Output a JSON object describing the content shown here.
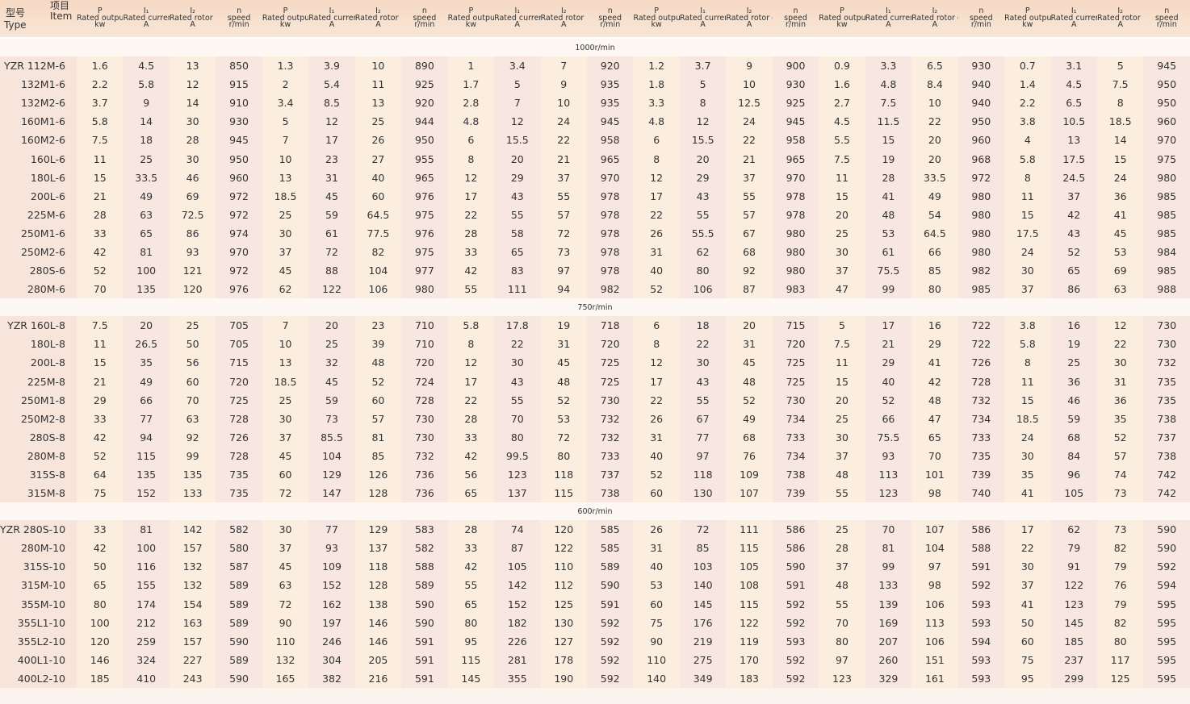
{
  "header": {
    "type_cn": "型号",
    "item_cn": "项目",
    "type_en": "Type",
    "item_en": "Item",
    "columns": [
      {
        "symbol": "P",
        "name": "Rated output",
        "unit": "kw"
      },
      {
        "symbol": "I₁",
        "name": "Rated current",
        "unit": "A"
      },
      {
        "symbol": "I₂",
        "name": "Rated rotor current",
        "unit": "A"
      },
      {
        "symbol": "n",
        "name": "speed",
        "unit": "r/min"
      }
    ]
  },
  "sections": [
    {
      "title": "1000r/min",
      "rows": [
        {
          "type": "YZR 112M-6",
          "values": [
            1.6,
            4.5,
            13,
            850,
            1.3,
            3.9,
            10,
            890,
            1,
            3.4,
            7,
            920,
            1.2,
            3.7,
            9,
            900,
            0.9,
            3.3,
            6.5,
            930,
            0.7,
            3.1,
            5,
            945
          ]
        },
        {
          "type": "132M1-6",
          "values": [
            2.2,
            5.8,
            12,
            915,
            2,
            5.4,
            11,
            925,
            1.7,
            5,
            9,
            935,
            1.8,
            5,
            10,
            930,
            1.6,
            4.8,
            8.4,
            940,
            1.4,
            4.5,
            7.5,
            950
          ]
        },
        {
          "type": "132M2-6",
          "values": [
            3.7,
            9,
            14,
            910,
            3.4,
            8.5,
            13,
            920,
            2.8,
            7,
            10,
            935,
            3.3,
            8,
            12.5,
            925,
            2.7,
            7.5,
            10,
            940,
            2.2,
            6.5,
            8,
            950
          ]
        },
        {
          "type": "160M1-6",
          "values": [
            5.8,
            14,
            30,
            930,
            5,
            12,
            25,
            944,
            4.8,
            12,
            24,
            945,
            4.8,
            12,
            24,
            945,
            4.5,
            11.5,
            22,
            950,
            3.8,
            10.5,
            18.5,
            960
          ]
        },
        {
          "type": "160M2-6",
          "values": [
            7.5,
            18,
            28,
            945,
            7,
            17,
            26,
            950,
            6,
            15.5,
            22,
            958,
            6,
            15.5,
            22,
            958,
            5.5,
            15,
            20,
            960,
            4,
            13,
            14,
            970
          ]
        },
        {
          "type": "160L-6",
          "values": [
            11,
            25,
            30,
            950,
            10,
            23,
            27,
            955,
            8,
            20,
            21,
            965,
            8,
            20,
            21,
            965,
            7.5,
            19,
            20,
            968,
            5.8,
            17.5,
            15,
            975
          ]
        },
        {
          "type": "180L-6",
          "values": [
            15,
            33.5,
            46,
            960,
            13,
            31,
            40,
            965,
            12,
            29,
            37,
            970,
            12,
            29,
            37,
            970,
            11,
            28,
            33.5,
            972,
            8,
            24.5,
            24,
            980
          ]
        },
        {
          "type": "200L-6",
          "values": [
            21,
            49,
            69,
            972,
            18.5,
            45,
            60,
            976,
            17,
            43,
            55,
            978,
            17,
            43,
            55,
            978,
            15,
            41,
            49,
            980,
            11,
            37,
            36,
            985
          ]
        },
        {
          "type": "225M-6",
          "values": [
            28,
            63,
            72.5,
            972,
            25,
            59,
            64.5,
            975,
            22,
            55,
            57,
            978,
            22,
            55,
            57,
            978,
            20,
            48,
            54,
            980,
            15,
            42,
            41,
            985
          ]
        },
        {
          "type": "250M1-6",
          "values": [
            33,
            65,
            86,
            974,
            30,
            61,
            77.5,
            976,
            28,
            58,
            72,
            978,
            26,
            55.5,
            67,
            980,
            25,
            53,
            64.5,
            980,
            17.5,
            43,
            45,
            985
          ]
        },
        {
          "type": "250M2-6",
          "values": [
            42,
            81,
            93,
            970,
            37,
            72,
            82,
            975,
            33,
            65,
            73,
            978,
            31,
            62,
            68,
            980,
            30,
            61,
            66,
            980,
            24,
            52,
            53,
            984
          ]
        },
        {
          "type": "280S-6",
          "values": [
            52,
            100,
            121,
            972,
            45,
            88,
            104,
            977,
            42,
            83,
            97,
            978,
            40,
            80,
            92,
            980,
            37,
            75.5,
            85,
            982,
            30,
            65,
            69,
            985
          ]
        },
        {
          "type": "280M-6",
          "values": [
            70,
            135,
            120,
            976,
            62,
            122,
            106,
            980,
            55,
            111,
            94,
            982,
            52,
            106,
            87,
            983,
            47,
            99,
            80,
            985,
            37,
            86,
            63,
            988
          ]
        }
      ]
    },
    {
      "title": "750r/min",
      "rows": [
        {
          "type": "YZR 160L-8",
          "values": [
            7.5,
            20,
            25,
            705,
            7,
            20,
            23,
            710,
            5.8,
            17.8,
            19,
            718,
            6,
            18,
            20,
            715,
            5,
            17,
            16,
            722,
            3.8,
            16,
            12,
            730
          ]
        },
        {
          "type": "180L-8",
          "values": [
            11,
            26.5,
            50,
            705,
            10,
            25,
            39,
            710,
            8,
            22,
            31,
            720,
            8,
            22,
            31,
            720,
            7.5,
            21,
            29,
            722,
            5.8,
            19,
            22,
            730
          ]
        },
        {
          "type": "200L-8",
          "values": [
            15,
            35,
            56,
            715,
            13,
            32,
            48,
            720,
            12,
            30,
            45,
            725,
            12,
            30,
            45,
            725,
            11,
            29,
            41,
            726,
            8,
            25,
            30,
            732
          ]
        },
        {
          "type": "225M-8",
          "values": [
            21,
            49,
            60,
            720,
            18.5,
            45,
            52,
            724,
            17,
            43,
            48,
            725,
            17,
            43,
            48,
            725,
            15,
            40,
            42,
            728,
            11,
            36,
            31,
            735
          ]
        },
        {
          "type": "250M1-8",
          "values": [
            29,
            66,
            70,
            725,
            25,
            59,
            60,
            728,
            22,
            55,
            52,
            730,
            22,
            55,
            52,
            730,
            20,
            52,
            48,
            732,
            15,
            46,
            36,
            735
          ]
        },
        {
          "type": "250M2-8",
          "values": [
            33,
            77,
            63,
            728,
            30,
            73,
            57,
            730,
            28,
            70,
            53,
            732,
            26,
            67,
            49,
            734,
            25,
            66,
            47,
            734,
            18.5,
            59,
            35,
            738
          ]
        },
        {
          "type": "280S-8",
          "values": [
            42,
            94,
            92,
            726,
            37,
            85.5,
            81,
            730,
            33,
            80,
            72,
            732,
            31,
            77,
            68,
            733,
            30,
            75.5,
            65,
            733,
            24,
            68,
            52,
            737
          ]
        },
        {
          "type": "280M-8",
          "values": [
            52,
            115,
            99,
            728,
            45,
            104,
            85,
            732,
            42,
            99.5,
            80,
            733,
            40,
            97,
            76,
            734,
            37,
            93,
            70,
            735,
            30,
            84,
            57,
            738
          ]
        },
        {
          "type": "315S-8",
          "values": [
            64,
            135,
            135,
            735,
            60,
            129,
            126,
            736,
            56,
            123,
            118,
            737,
            52,
            118,
            109,
            738,
            48,
            113,
            101,
            739,
            35,
            96,
            74,
            742
          ]
        },
        {
          "type": "315M-8",
          "values": [
            75,
            152,
            133,
            735,
            72,
            147,
            128,
            736,
            65,
            137,
            115,
            738,
            60,
            130,
            107,
            739,
            55,
            123,
            98,
            740,
            41,
            105,
            73,
            742
          ]
        }
      ]
    },
    {
      "title": "600r/min",
      "rows": [
        {
          "type": "YZR 280S-10",
          "values": [
            33,
            81,
            142,
            582,
            30,
            77,
            129,
            583,
            28,
            74,
            120,
            585,
            26,
            72,
            111,
            586,
            25,
            70,
            107,
            586,
            17,
            62,
            73,
            590
          ]
        },
        {
          "type": "280M-10",
          "values": [
            42,
            100,
            157,
            580,
            37,
            93,
            137,
            582,
            33,
            87,
            122,
            585,
            31,
            85,
            115,
            586,
            28,
            81,
            104,
            588,
            22,
            79,
            82,
            590
          ]
        },
        {
          "type": "315S-10",
          "values": [
            50,
            116,
            132,
            587,
            45,
            109,
            118,
            588,
            42,
            105,
            110,
            589,
            40,
            103,
            105,
            590,
            37,
            99,
            97,
            591,
            30,
            91,
            79,
            592
          ]
        },
        {
          "type": "315M-10",
          "values": [
            65,
            155,
            132,
            589,
            63,
            152,
            128,
            589,
            55,
            142,
            112,
            590,
            53,
            140,
            108,
            591,
            48,
            133,
            98,
            592,
            37,
            122,
            76,
            594
          ]
        },
        {
          "type": "355M-10",
          "values": [
            80,
            174,
            154,
            589,
            72,
            162,
            138,
            590,
            65,
            152,
            125,
            591,
            60,
            145,
            115,
            592,
            55,
            139,
            106,
            593,
            41,
            123,
            79,
            595
          ]
        },
        {
          "type": "355L1-10",
          "values": [
            100,
            212,
            163,
            589,
            90,
            197,
            146,
            590,
            80,
            182,
            130,
            592,
            75,
            176,
            122,
            592,
            70,
            169,
            113,
            593,
            50,
            145,
            82,
            595
          ]
        },
        {
          "type": "355L2-10",
          "values": [
            120,
            259,
            157,
            590,
            110,
            246,
            146,
            591,
            95,
            226,
            127,
            592,
            90,
            219,
            119,
            593,
            80,
            207,
            106,
            594,
            60,
            185,
            80,
            595
          ]
        },
        {
          "type": "400L1-10",
          "values": [
            146,
            324,
            227,
            589,
            132,
            304,
            205,
            591,
            115,
            281,
            178,
            592,
            110,
            275,
            170,
            592,
            97,
            260,
            151,
            593,
            75,
            237,
            117,
            595
          ]
        },
        {
          "type": "400L2-10",
          "values": [
            185,
            410,
            243,
            590,
            165,
            382,
            216,
            591,
            145,
            355,
            190,
            592,
            140,
            349,
            183,
            592,
            123,
            329,
            161,
            593,
            95,
            299,
            125,
            595
          ]
        }
      ]
    }
  ]
}
